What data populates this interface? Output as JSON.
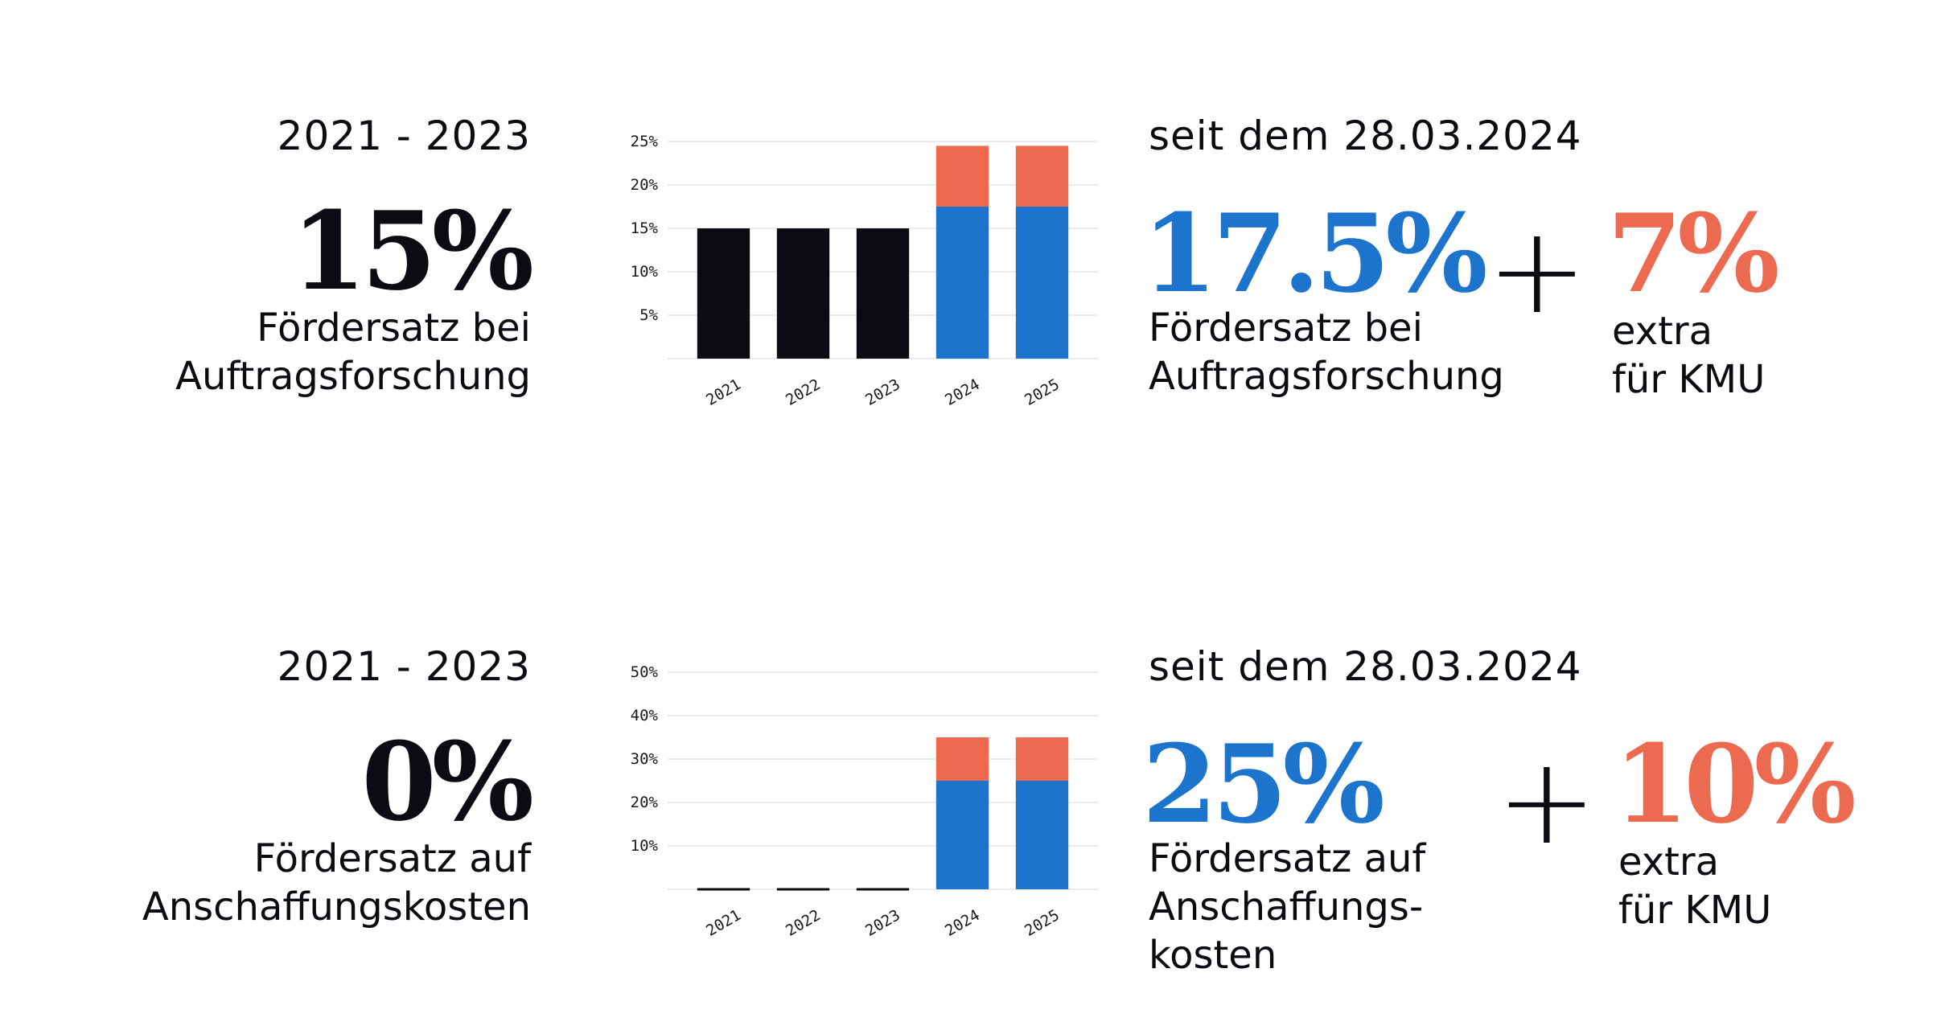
{
  "colors": {
    "black": "#0b0b12",
    "blue": "#1c74cc",
    "orange": "#ec6a4f",
    "grid": "#e6e6e6"
  },
  "sections": [
    {
      "years": "2021 - 2023",
      "old_rate": "15%",
      "old_desc": "Fördersatz bei Auftragsforschung",
      "since": "seit dem 28.03.2024",
      "new_rate": "17.5%",
      "new_desc": "Fördersatz bei Auftragsforschung",
      "plus": "+",
      "extra_rate": "7%",
      "extra_desc": "extra\nfür KMU"
    },
    {
      "years": "2021 - 2023",
      "old_rate": "0%",
      "old_desc": "Fördersatz auf Anschaffungskosten",
      "since": "seit dem 28.03.2024",
      "new_rate": "25%",
      "new_desc": "Fördersatz auf Anschaffungs-kosten",
      "plus": "+",
      "extra_rate": "10%",
      "extra_desc": "extra\nfür KMU"
    }
  ],
  "chart_data": [
    {
      "type": "bar",
      "stacked": true,
      "categories": [
        "2021",
        "2022",
        "2023",
        "2024",
        "2025"
      ],
      "ylim": [
        0,
        25
      ],
      "yticks": [
        5,
        10,
        15,
        20,
        25
      ],
      "ytick_labels": [
        "5%",
        "10%",
        "15%",
        "20%",
        "25%"
      ],
      "grid": true,
      "series": [
        {
          "color": "#0b0b12",
          "values": [
            15,
            15,
            15,
            0,
            0
          ]
        },
        {
          "color": "#1c74cc",
          "values": [
            0,
            0,
            0,
            17.5,
            17.5
          ]
        },
        {
          "color": "#ec6a4f",
          "values": [
            0,
            0,
            0,
            7,
            7
          ]
        }
      ]
    },
    {
      "type": "bar",
      "stacked": true,
      "categories": [
        "2021",
        "2022",
        "2023",
        "2024",
        "2025"
      ],
      "ylim": [
        0,
        50
      ],
      "yticks": [
        10,
        20,
        30,
        40,
        50
      ],
      "ytick_labels": [
        "10%",
        "20%",
        "30%",
        "40%",
        "50%"
      ],
      "grid": true,
      "series": [
        {
          "color": "#0b0b12",
          "values": [
            0,
            0,
            0,
            0,
            0
          ]
        },
        {
          "color": "#1c74cc",
          "values": [
            0,
            0,
            0,
            25,
            25
          ]
        },
        {
          "color": "#ec6a4f",
          "values": [
            0,
            0,
            0,
            10,
            10
          ]
        }
      ]
    }
  ]
}
